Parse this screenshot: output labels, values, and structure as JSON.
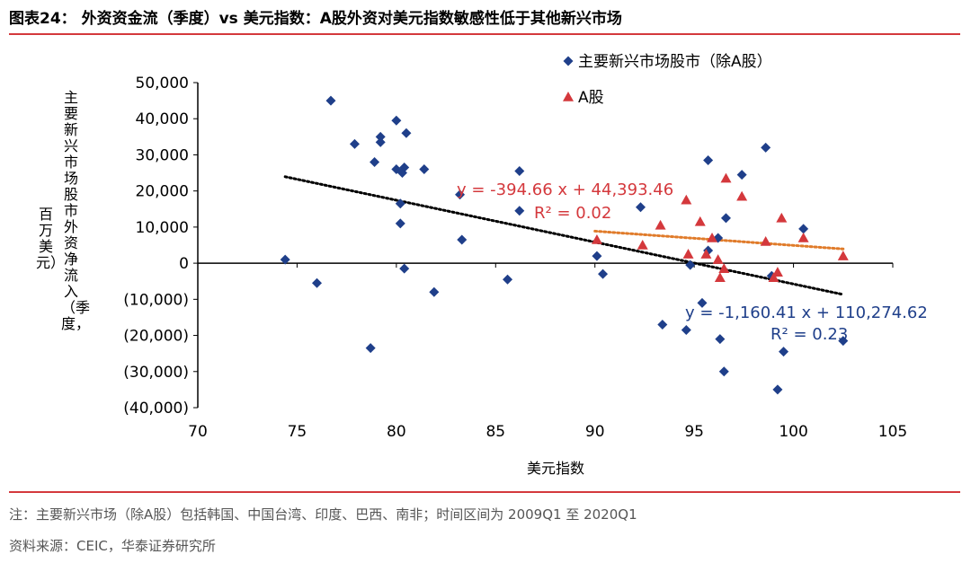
{
  "header": {
    "title": "图表24： 外资资金流（季度）vs 美元指数：A股外资对美元指数敏感性低于其他新兴市场"
  },
  "footer": {
    "note": "注：主要新兴市场（除A股）包括韩国、中国台湾、印度、巴西、南非；时间区间为 2009Q1 至 2020Q1",
    "source": "资料来源：CEIC，华泰证券研究所"
  },
  "chart_data": {
    "type": "scatter",
    "xlabel": "美元指数",
    "ylabel": "主要新兴市场股市外资净流入（季度，",
    "ylabel_unit": "百万美元）",
    "xlim": [
      70,
      105
    ],
    "ylim": [
      -40000,
      50000
    ],
    "x_ticks": [
      "70",
      "75",
      "80",
      "85",
      "90",
      "95",
      "100",
      "105"
    ],
    "y_ticks": [
      "50,000",
      "40,000",
      "30,000",
      "20,000",
      "10,000",
      "0",
      "(10,000)",
      "(20,000)",
      "(30,000)",
      "(40,000)"
    ],
    "legend_position": "top-right",
    "series": [
      {
        "name": "主要新兴市场股市（除A股）",
        "color": "#1f3f8a",
        "marker": "diamond",
        "points": [
          [
            74.4,
            1000
          ],
          [
            76.0,
            -5500
          ],
          [
            76.7,
            45000
          ],
          [
            77.9,
            33000
          ],
          [
            78.7,
            -23500
          ],
          [
            78.9,
            28000
          ],
          [
            79.2,
            33500
          ],
          [
            79.2,
            35000
          ],
          [
            80.0,
            39500
          ],
          [
            80.0,
            26000
          ],
          [
            80.2,
            16500
          ],
          [
            80.2,
            11000
          ],
          [
            80.3,
            25000
          ],
          [
            80.4,
            26500
          ],
          [
            80.4,
            -1500
          ],
          [
            80.5,
            36000
          ],
          [
            81.4,
            26000
          ],
          [
            81.9,
            -8000
          ],
          [
            83.2,
            19000
          ],
          [
            83.3,
            6500
          ],
          [
            85.6,
            -4500
          ],
          [
            86.2,
            25500
          ],
          [
            86.2,
            14500
          ],
          [
            90.1,
            2000
          ],
          [
            90.4,
            -3000
          ],
          [
            92.3,
            15500
          ],
          [
            93.4,
            -17000
          ],
          [
            94.6,
            -18500
          ],
          [
            94.8,
            -500
          ],
          [
            95.4,
            -11000
          ],
          [
            95.7,
            3500
          ],
          [
            95.7,
            28500
          ],
          [
            96.2,
            7000
          ],
          [
            96.3,
            -21000
          ],
          [
            96.5,
            -30000
          ],
          [
            96.6,
            12500
          ],
          [
            97.4,
            24500
          ],
          [
            98.6,
            32000
          ],
          [
            98.9,
            -3500
          ],
          [
            99.2,
            -35000
          ],
          [
            99.5,
            -24500
          ],
          [
            100.5,
            9500
          ],
          [
            102.5,
            -21500
          ]
        ],
        "trendline": {
          "label": "y = -1,160.41 x + 110,274.62",
          "r2": "R² = 0.23",
          "slope": -1160.41,
          "intercept": 110274.62,
          "x_range": [
            74.4,
            102.5
          ],
          "color": "#000000"
        }
      },
      {
        "name": "A股",
        "color": "#d4383c",
        "marker": "triangle",
        "points": [
          [
            90.1,
            6500
          ],
          [
            92.4,
            5000
          ],
          [
            93.3,
            10500
          ],
          [
            94.6,
            17500
          ],
          [
            94.7,
            2500
          ],
          [
            95.3,
            11500
          ],
          [
            95.6,
            2500
          ],
          [
            95.9,
            7000
          ],
          [
            96.2,
            1000
          ],
          [
            96.3,
            -4000
          ],
          [
            96.5,
            -1500
          ],
          [
            96.6,
            23500
          ],
          [
            97.4,
            18500
          ],
          [
            98.6,
            6000
          ],
          [
            99.0,
            -4000
          ],
          [
            99.2,
            -2500
          ],
          [
            99.4,
            12500
          ],
          [
            100.5,
            7000
          ],
          [
            102.5,
            2000
          ]
        ],
        "trendline": {
          "label": "y = -394.66 x + 44,393.46",
          "r2": "R² = 0.02",
          "slope": -394.66,
          "intercept": 44393.46,
          "x_range": [
            90.0,
            102.5
          ],
          "color": "#e07b2a"
        }
      }
    ]
  }
}
